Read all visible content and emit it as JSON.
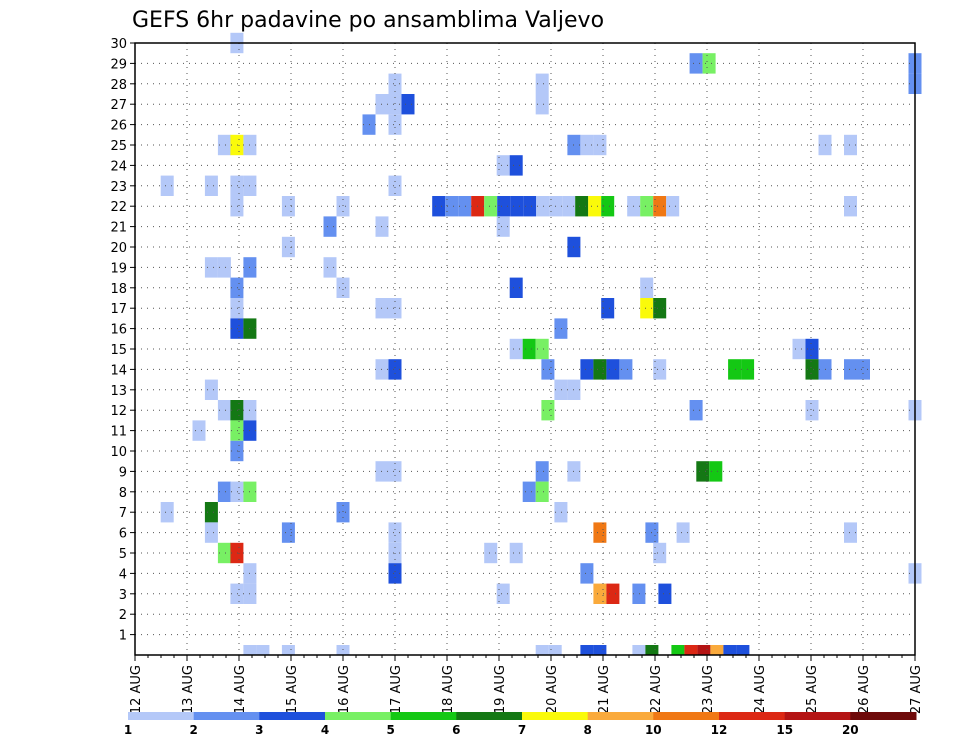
{
  "chart_data": {
    "type": "heatmap",
    "title": "GEFS 6hr padavine po ansamblima Valjevo",
    "y_ticks": [
      "1",
      "2",
      "3",
      "4",
      "5",
      "6",
      "7",
      "8",
      "9",
      "10",
      "11",
      "12",
      "13",
      "14",
      "15",
      "16",
      "17",
      "18",
      "19",
      "20",
      "21",
      "22",
      "23",
      "24",
      "25",
      "26",
      "27",
      "28",
      "29",
      "30"
    ],
    "x_ticks": [
      "12 AUG",
      "13 AUG",
      "14 AUG",
      "15 AUG",
      "16 AUG",
      "17 AUG",
      "18 AUG",
      "19 AUG",
      "20 AUG",
      "21 AUG",
      "22 AUG",
      "23 AUG",
      "24 AUG",
      "25 AUG",
      "26 AUG",
      "27 AUG"
    ],
    "x_range_days": [
      0,
      15
    ],
    "y_range_members": [
      0,
      30
    ],
    "grid": true,
    "legend": {
      "placement": "bottom",
      "labels": [
        "1",
        "2",
        "3",
        "4",
        "5",
        "6",
        "7",
        "8",
        "10",
        "12",
        "15",
        "20"
      ],
      "colors": [
        "#b4c8f8",
        "#6490f0",
        "#1e50dc",
        "#78f064",
        "#14c814",
        "#147814",
        "#fafa0a",
        "#faaa3c",
        "#f07814",
        "#dc2814",
        "#b41414",
        "#6e0a0a"
      ]
    },
    "colors": {
      "c1": "#b4c8f8",
      "c2": "#6490f0",
      "c3": "#1e50dc",
      "c4": "#78f064",
      "c5": "#14c814",
      "c6": "#147814",
      "c7": "#fafa0a",
      "c8": "#faaa3c",
      "c10": "#f07814",
      "c12": "#dc2814",
      "c15": "#b41414",
      "c20": "#6e0a0a"
    },
    "cells": [
      {
        "x": 1.96,
        "y": 30,
        "c": "c1"
      },
      {
        "x": 10.79,
        "y": 29,
        "c": "c2"
      },
      {
        "x": 11.04,
        "y": 29,
        "c": "c4"
      },
      {
        "x": 15.0,
        "y": 29,
        "c": "c2"
      },
      {
        "x": 5.0,
        "y": 28,
        "c": "c1"
      },
      {
        "x": 7.83,
        "y": 28,
        "c": "c1"
      },
      {
        "x": 15.0,
        "y": 28,
        "c": "c2"
      },
      {
        "x": 4.75,
        "y": 27,
        "c": "c1"
      },
      {
        "x": 5.0,
        "y": 27,
        "c": "c1"
      },
      {
        "x": 5.25,
        "y": 27,
        "c": "c3"
      },
      {
        "x": 7.83,
        "y": 27,
        "c": "c1"
      },
      {
        "x": 4.5,
        "y": 26,
        "c": "c2"
      },
      {
        "x": 5.0,
        "y": 26,
        "c": "c1"
      },
      {
        "x": 1.72,
        "y": 25,
        "c": "c1"
      },
      {
        "x": 1.96,
        "y": 25,
        "c": "c7"
      },
      {
        "x": 2.21,
        "y": 25,
        "c": "c1"
      },
      {
        "x": 8.44,
        "y": 25,
        "c": "c2"
      },
      {
        "x": 8.69,
        "y": 25,
        "c": "c1"
      },
      {
        "x": 8.94,
        "y": 25,
        "c": "c1"
      },
      {
        "x": 13.27,
        "y": 25,
        "c": "c1"
      },
      {
        "x": 13.76,
        "y": 25,
        "c": "c1"
      },
      {
        "x": 7.08,
        "y": 24,
        "c": "c1"
      },
      {
        "x": 7.33,
        "y": 24,
        "c": "c3"
      },
      {
        "x": 0.62,
        "y": 23,
        "c": "c1"
      },
      {
        "x": 1.47,
        "y": 23,
        "c": "c1"
      },
      {
        "x": 1.96,
        "y": 23,
        "c": "c1"
      },
      {
        "x": 2.21,
        "y": 23,
        "c": "c1"
      },
      {
        "x": 5.0,
        "y": 23,
        "c": "c1"
      },
      {
        "x": 1.96,
        "y": 22,
        "c": "c1"
      },
      {
        "x": 2.95,
        "y": 22,
        "c": "c1"
      },
      {
        "x": 4.0,
        "y": 22,
        "c": "c1"
      },
      {
        "x": 5.84,
        "y": 22,
        "c": "c3"
      },
      {
        "x": 6.09,
        "y": 22,
        "c": "c2"
      },
      {
        "x": 6.34,
        "y": 22,
        "c": "c2"
      },
      {
        "x": 6.59,
        "y": 22,
        "c": "c12"
      },
      {
        "x": 6.84,
        "y": 22,
        "c": "c4"
      },
      {
        "x": 7.09,
        "y": 22,
        "c": "c3"
      },
      {
        "x": 7.34,
        "y": 22,
        "c": "c3"
      },
      {
        "x": 7.59,
        "y": 22,
        "c": "c3"
      },
      {
        "x": 7.84,
        "y": 22,
        "c": "c1"
      },
      {
        "x": 8.09,
        "y": 22,
        "c": "c1"
      },
      {
        "x": 8.34,
        "y": 22,
        "c": "c1"
      },
      {
        "x": 8.59,
        "y": 22,
        "c": "c6"
      },
      {
        "x": 8.84,
        "y": 22,
        "c": "c7"
      },
      {
        "x": 9.09,
        "y": 22,
        "c": "c5"
      },
      {
        "x": 9.59,
        "y": 22,
        "c": "c1"
      },
      {
        "x": 9.84,
        "y": 22,
        "c": "c4"
      },
      {
        "x": 10.09,
        "y": 22,
        "c": "c10"
      },
      {
        "x": 10.34,
        "y": 22,
        "c": "c1"
      },
      {
        "x": 13.76,
        "y": 22,
        "c": "c1"
      },
      {
        "x": 3.75,
        "y": 21,
        "c": "c2"
      },
      {
        "x": 4.75,
        "y": 21,
        "c": "c1"
      },
      {
        "x": 7.08,
        "y": 21,
        "c": "c1"
      },
      {
        "x": 2.95,
        "y": 20,
        "c": "c1"
      },
      {
        "x": 8.44,
        "y": 20,
        "c": "c3"
      },
      {
        "x": 1.47,
        "y": 19,
        "c": "c1"
      },
      {
        "x": 1.72,
        "y": 19,
        "c": "c1"
      },
      {
        "x": 2.21,
        "y": 19,
        "c": "c2"
      },
      {
        "x": 3.75,
        "y": 19,
        "c": "c1"
      },
      {
        "x": 1.96,
        "y": 18,
        "c": "c2"
      },
      {
        "x": 4.0,
        "y": 18,
        "c": "c1"
      },
      {
        "x": 7.33,
        "y": 18,
        "c": "c3"
      },
      {
        "x": 9.84,
        "y": 18,
        "c": "c1"
      },
      {
        "x": 1.96,
        "y": 17,
        "c": "c1"
      },
      {
        "x": 4.75,
        "y": 17,
        "c": "c1"
      },
      {
        "x": 5.0,
        "y": 17,
        "c": "c1"
      },
      {
        "x": 9.09,
        "y": 17,
        "c": "c3"
      },
      {
        "x": 9.84,
        "y": 17,
        "c": "c7"
      },
      {
        "x": 10.09,
        "y": 17,
        "c": "c6"
      },
      {
        "x": 1.96,
        "y": 16,
        "c": "c3"
      },
      {
        "x": 2.21,
        "y": 16,
        "c": "c6"
      },
      {
        "x": 8.19,
        "y": 16,
        "c": "c2"
      },
      {
        "x": 7.33,
        "y": 15,
        "c": "c1"
      },
      {
        "x": 7.58,
        "y": 15,
        "c": "c5"
      },
      {
        "x": 7.83,
        "y": 15,
        "c": "c4"
      },
      {
        "x": 12.77,
        "y": 15,
        "c": "c1"
      },
      {
        "x": 13.02,
        "y": 15,
        "c": "c3"
      },
      {
        "x": 4.75,
        "y": 14,
        "c": "c1"
      },
      {
        "x": 5.0,
        "y": 14,
        "c": "c3"
      },
      {
        "x": 7.94,
        "y": 14,
        "c": "c2"
      },
      {
        "x": 8.69,
        "y": 14,
        "c": "c3"
      },
      {
        "x": 8.94,
        "y": 14,
        "c": "c6"
      },
      {
        "x": 9.19,
        "y": 14,
        "c": "c3"
      },
      {
        "x": 9.44,
        "y": 14,
        "c": "c2"
      },
      {
        "x": 10.09,
        "y": 14,
        "c": "c1"
      },
      {
        "x": 11.53,
        "y": 14,
        "c": "c5"
      },
      {
        "x": 11.78,
        "y": 14,
        "c": "c5"
      },
      {
        "x": 13.02,
        "y": 14,
        "c": "c6"
      },
      {
        "x": 13.27,
        "y": 14,
        "c": "c2"
      },
      {
        "x": 13.76,
        "y": 14,
        "c": "c2"
      },
      {
        "x": 14.01,
        "y": 14,
        "c": "c2"
      },
      {
        "x": 1.47,
        "y": 13,
        "c": "c1"
      },
      {
        "x": 8.19,
        "y": 13,
        "c": "c1"
      },
      {
        "x": 8.44,
        "y": 13,
        "c": "c1"
      },
      {
        "x": 1.72,
        "y": 12,
        "c": "c1"
      },
      {
        "x": 1.96,
        "y": 12,
        "c": "c6"
      },
      {
        "x": 2.21,
        "y": 12,
        "c": "c1"
      },
      {
        "x": 7.94,
        "y": 12,
        "c": "c4"
      },
      {
        "x": 10.79,
        "y": 12,
        "c": "c2"
      },
      {
        "x": 13.02,
        "y": 12,
        "c": "c1"
      },
      {
        "x": 15.0,
        "y": 12,
        "c": "c1"
      },
      {
        "x": 1.23,
        "y": 11,
        "c": "c1"
      },
      {
        "x": 1.96,
        "y": 11,
        "c": "c4"
      },
      {
        "x": 2.21,
        "y": 11,
        "c": "c3"
      },
      {
        "x": 1.96,
        "y": 10,
        "c": "c2"
      },
      {
        "x": 4.75,
        "y": 9,
        "c": "c1"
      },
      {
        "x": 5.0,
        "y": 9,
        "c": "c1"
      },
      {
        "x": 7.83,
        "y": 9,
        "c": "c2"
      },
      {
        "x": 8.44,
        "y": 9,
        "c": "c1"
      },
      {
        "x": 10.92,
        "y": 9,
        "c": "c6"
      },
      {
        "x": 11.17,
        "y": 9,
        "c": "c5"
      },
      {
        "x": 1.72,
        "y": 8,
        "c": "c2"
      },
      {
        "x": 1.96,
        "y": 8,
        "c": "c1"
      },
      {
        "x": 2.21,
        "y": 8,
        "c": "c4"
      },
      {
        "x": 7.58,
        "y": 8,
        "c": "c2"
      },
      {
        "x": 7.83,
        "y": 8,
        "c": "c4"
      },
      {
        "x": 0.62,
        "y": 7,
        "c": "c1"
      },
      {
        "x": 1.47,
        "y": 7,
        "c": "c6"
      },
      {
        "x": 4.0,
        "y": 7,
        "c": "c2"
      },
      {
        "x": 8.19,
        "y": 7,
        "c": "c1"
      },
      {
        "x": 1.47,
        "y": 6,
        "c": "c1"
      },
      {
        "x": 2.95,
        "y": 6,
        "c": "c2"
      },
      {
        "x": 5.0,
        "y": 6,
        "c": "c1"
      },
      {
        "x": 8.94,
        "y": 6,
        "c": "c10"
      },
      {
        "x": 9.94,
        "y": 6,
        "c": "c2"
      },
      {
        "x": 10.54,
        "y": 6,
        "c": "c1"
      },
      {
        "x": 13.76,
        "y": 6,
        "c": "c1"
      },
      {
        "x": 1.72,
        "y": 5,
        "c": "c4"
      },
      {
        "x": 1.96,
        "y": 5,
        "c": "c12"
      },
      {
        "x": 5.0,
        "y": 5,
        "c": "c1"
      },
      {
        "x": 6.84,
        "y": 5,
        "c": "c1"
      },
      {
        "x": 7.33,
        "y": 5,
        "c": "c1"
      },
      {
        "x": 10.09,
        "y": 5,
        "c": "c1"
      },
      {
        "x": 2.21,
        "y": 4,
        "c": "c1"
      },
      {
        "x": 5.0,
        "y": 4,
        "c": "c3"
      },
      {
        "x": 8.69,
        "y": 4,
        "c": "c2"
      },
      {
        "x": 15.0,
        "y": 4,
        "c": "c1"
      },
      {
        "x": 1.96,
        "y": 3,
        "c": "c1"
      },
      {
        "x": 2.21,
        "y": 3,
        "c": "c1"
      },
      {
        "x": 7.08,
        "y": 3,
        "c": "c1"
      },
      {
        "x": 8.94,
        "y": 3,
        "c": "c8"
      },
      {
        "x": 9.19,
        "y": 3,
        "c": "c12"
      },
      {
        "x": 9.69,
        "y": 3,
        "c": "c2"
      },
      {
        "x": 10.19,
        "y": 3,
        "c": "c3"
      },
      {
        "x": 2.21,
        "y": 0,
        "c": "c1"
      },
      {
        "x": 2.46,
        "y": 0,
        "c": "c1"
      },
      {
        "x": 2.95,
        "y": 0,
        "c": "c1"
      },
      {
        "x": 4.0,
        "y": 0,
        "c": "c1"
      },
      {
        "x": 7.83,
        "y": 0,
        "c": "c1"
      },
      {
        "x": 8.08,
        "y": 0,
        "c": "c1"
      },
      {
        "x": 8.69,
        "y": 0,
        "c": "c3"
      },
      {
        "x": 8.94,
        "y": 0,
        "c": "c3"
      },
      {
        "x": 9.69,
        "y": 0,
        "c": "c1"
      },
      {
        "x": 9.94,
        "y": 0,
        "c": "c6"
      },
      {
        "x": 10.44,
        "y": 0,
        "c": "c5"
      },
      {
        "x": 10.69,
        "y": 0,
        "c": "c12"
      },
      {
        "x": 10.94,
        "y": 0,
        "c": "c15"
      },
      {
        "x": 11.19,
        "y": 0,
        "c": "c8"
      },
      {
        "x": 11.44,
        "y": 0,
        "c": "c3"
      },
      {
        "x": 11.69,
        "y": 0,
        "c": "c3"
      }
    ]
  }
}
